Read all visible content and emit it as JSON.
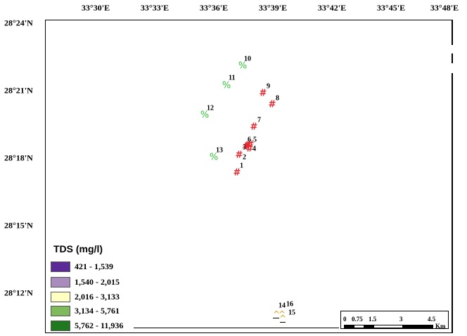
{
  "map": {
    "lon_labels": [
      "33°30'E",
      "33°33'E",
      "33°36'E",
      "33°39'E",
      "33°42'E",
      "33°45'E",
      "33°48'E"
    ],
    "lat_labels": [
      "28°24'N",
      "28°21'N",
      "28°18'N",
      "28°15'N",
      "28°12'N"
    ]
  },
  "points": [
    {
      "id": "1",
      "symbol": "#",
      "class": "hash"
    },
    {
      "id": "2",
      "symbol": "#",
      "class": "hash"
    },
    {
      "id": "3",
      "symbol": "#",
      "class": "hash"
    },
    {
      "id": "4",
      "symbol": "#",
      "class": "hash"
    },
    {
      "id": "5",
      "symbol": "#",
      "class": "hash"
    },
    {
      "id": "6",
      "symbol": "#",
      "class": "hash"
    },
    {
      "id": "7",
      "symbol": "#",
      "class": "hash"
    },
    {
      "id": "8",
      "symbol": "#",
      "class": "hash"
    },
    {
      "id": "9",
      "symbol": "#",
      "class": "hash"
    },
    {
      "id": "10",
      "symbol": "%",
      "class": "pct"
    },
    {
      "id": "11",
      "symbol": "%",
      "class": "pct"
    },
    {
      "id": "12",
      "symbol": "%",
      "class": "pct"
    },
    {
      "id": "13",
      "symbol": "%",
      "class": "pct"
    },
    {
      "id": "14",
      "symbol": "^",
      "class": "caret"
    },
    {
      "id": "15",
      "symbol": "^",
      "class": "caret"
    },
    {
      "id": "16",
      "symbol": "^",
      "class": "caret"
    }
  ],
  "legend": {
    "title": "TDS (mg/l)",
    "items": [
      {
        "label": "421 - 1,539",
        "color": "#5b2a98"
      },
      {
        "label": "1,540 - 2,015",
        "color": "#a98bbd"
      },
      {
        "label": "2,016 - 3,133",
        "color": "#ffffc4"
      },
      {
        "label": "3,134 - 5,761",
        "color": "#7fba5c"
      },
      {
        "label": "5,762 - 11,936",
        "color": "#1f7a1f"
      }
    ]
  },
  "scalebar": {
    "ticks": [
      "0",
      "0.75",
      "1.5",
      "3",
      "4.5"
    ],
    "unit": "Km"
  }
}
